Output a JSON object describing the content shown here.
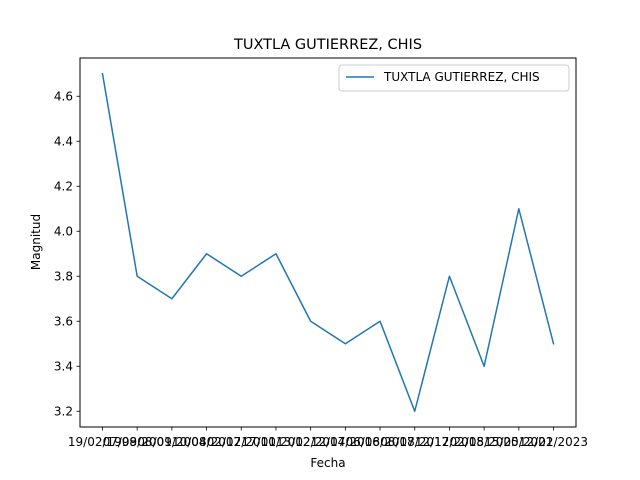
{
  "chart_data": {
    "type": "line",
    "title": "TUXTLA GUTIERREZ, CHIS",
    "xlabel": "Fecha",
    "ylabel": "Magnitud",
    "categories": [
      "19/02/1998",
      "07/09/2001",
      "08/09/2004",
      "10/08/2007",
      "02/12/2010",
      "17/01/2012",
      "13/02/2014",
      "12/07/2016",
      "06/08/2017",
      "08/08/2017",
      "12/12/2018",
      "02/05/2020",
      "15/05/2021",
      "12/02/2023"
    ],
    "series": [
      {
        "name": "TUXTLA GUTIERREZ, CHIS",
        "color": "#1f77b4",
        "values": [
          4.7,
          3.8,
          3.7,
          3.9,
          3.8,
          3.9,
          3.6,
          3.5,
          3.6,
          3.2,
          3.8,
          3.4,
          4.1,
          3.5
        ]
      }
    ],
    "ylim": [
      3.13,
      4.77
    ],
    "yticks": [
      3.2,
      3.4,
      3.6,
      3.8,
      4.0,
      4.2,
      4.4,
      4.6
    ],
    "ytick_labels": [
      "3.2",
      "3.4",
      "3.6",
      "3.8",
      "4.0",
      "4.2",
      "4.4",
      "4.6"
    ],
    "grid": false,
    "legend_position": "upper-right"
  }
}
